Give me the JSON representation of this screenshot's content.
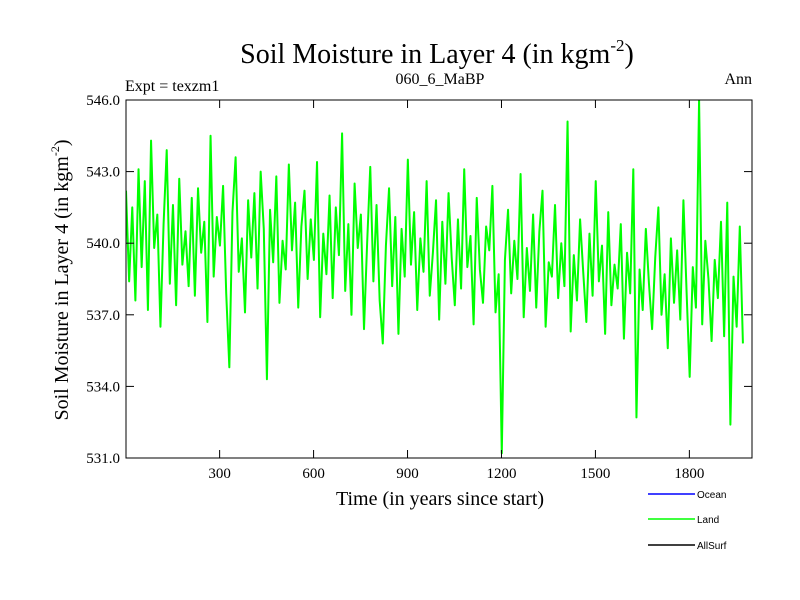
{
  "chart_data": {
    "type": "line",
    "title": "Soil Moisture in Layer 4 (in kgm",
    "title_superscript": "-2",
    "title_suffix": ")",
    "left_label": "Expt = texzm1",
    "center_label": "060_6_MaBP",
    "right_label": "Ann",
    "xlabel": "Time (in years since start)",
    "ylabel": "Soil Moisture in Layer 4 (in kgm",
    "ylabel_superscript": "-2",
    "ylabel_suffix": ")",
    "xlim": [
      1,
      2000
    ],
    "ylim": [
      531.0,
      546.0
    ],
    "xticks": [
      300,
      600,
      900,
      1200,
      1500,
      1800
    ],
    "xtick_labels": [
      "300",
      "600",
      "900",
      "1200",
      "1500",
      "1800"
    ],
    "yticks": [
      531.0,
      534.0,
      537.0,
      540.0,
      543.0,
      546.0
    ],
    "ytick_labels": [
      "531.0",
      "534.0",
      "537.0",
      "540.0",
      "543.0",
      "546.0"
    ],
    "legend": [
      {
        "name": "Ocean",
        "color": "#0000ff"
      },
      {
        "name": "Land",
        "color": "#00ff00"
      },
      {
        "name": "AllSurf",
        "color": "#000000"
      }
    ],
    "series": [
      {
        "name": "Land",
        "color": "#00ff00",
        "x_start": 1,
        "x_step": 10,
        "values": [
          542.2,
          538.4,
          541.5,
          537.6,
          543.1,
          539.0,
          542.6,
          537.2,
          544.3,
          539.8,
          541.2,
          536.5,
          540.8,
          543.9,
          538.3,
          541.6,
          537.4,
          542.7,
          539.1,
          540.5,
          538.2,
          541.9,
          537.8,
          542.3,
          539.6,
          540.9,
          536.7,
          544.5,
          538.6,
          541.1,
          539.9,
          542.4,
          537.9,
          534.8,
          541.3,
          543.6,
          538.8,
          540.2,
          537.1,
          541.8,
          539.4,
          542.1,
          538.1,
          543.0,
          540.6,
          534.3,
          541.4,
          539.2,
          542.8,
          537.5,
          540.1,
          538.9,
          543.3,
          539.7,
          541.7,
          537.3,
          540.7,
          542.2,
          538.5,
          541.0,
          539.3,
          543.4,
          536.9,
          540.4,
          538.7,
          542.0,
          537.7,
          541.5,
          539.5,
          544.6,
          538.0,
          540.8,
          537.0,
          542.5,
          539.8,
          541.2,
          536.4,
          540.0,
          543.2,
          538.4,
          541.6,
          537.6,
          535.8,
          539.9,
          542.3,
          538.2,
          541.1,
          536.2,
          540.6,
          538.6,
          543.5,
          539.1,
          541.3,
          537.2,
          540.2,
          538.8,
          542.6,
          537.8,
          539.6,
          541.8,
          536.8,
          540.9,
          538.3,
          542.1,
          539.4,
          537.4,
          541.0,
          538.1,
          543.1,
          539.0,
          540.3,
          536.6,
          541.9,
          538.9,
          537.5,
          540.7,
          539.7,
          542.4,
          537.1,
          538.7,
          531.2,
          539.3,
          541.4,
          537.9,
          540.1,
          538.5,
          542.9,
          536.9,
          539.8,
          538.0,
          541.2,
          537.3,
          540.5,
          542.2,
          536.5,
          539.2,
          538.6,
          541.6,
          537.7,
          540.0,
          538.2,
          545.1,
          536.3,
          539.5,
          537.6,
          541.0,
          538.8,
          536.7,
          540.4,
          537.8,
          542.6,
          538.4,
          539.9,
          536.2,
          541.3,
          537.4,
          539.1,
          538.1,
          540.8,
          536.0,
          539.6,
          537.9,
          543.1,
          532.7,
          538.9,
          537.2,
          540.6,
          538.3,
          536.4,
          539.4,
          541.5,
          537.0,
          538.7,
          535.6,
          540.2,
          537.5,
          539.7,
          536.8,
          541.8,
          538.0,
          534.4,
          539.0,
          537.3,
          546.0,
          536.6,
          540.1,
          538.5,
          535.9,
          539.3,
          537.7,
          540.9,
          536.1,
          541.7,
          532.4,
          538.6,
          536.5,
          540.7,
          535.8
        ]
      }
    ]
  }
}
